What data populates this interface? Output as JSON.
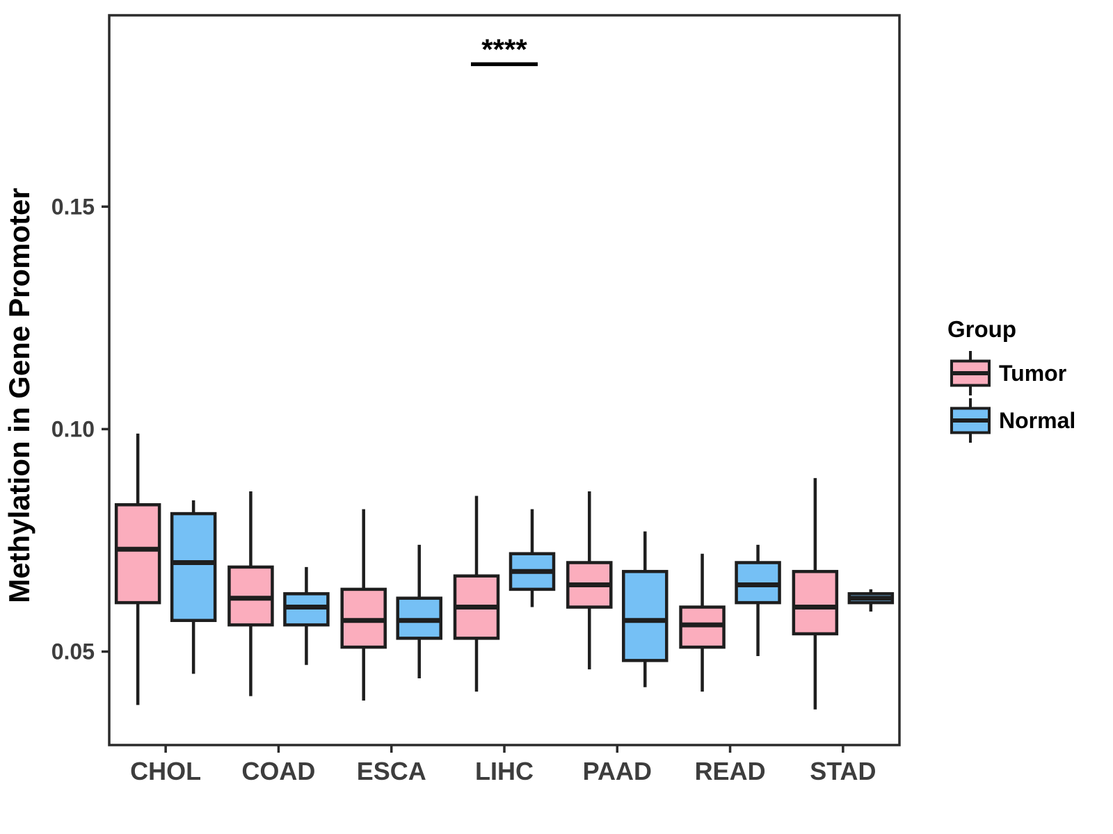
{
  "figure": {
    "y_axis_title": "Methylation in Gene Promoter",
    "significance_label": "****",
    "legend_title": "Group",
    "legend_items": [
      "Tumor",
      "Normal"
    ]
  },
  "colors": {
    "tumor_fill": "#FBADBD",
    "normal_fill": "#75C0F5",
    "box_stroke": "#1e1e1e",
    "panel_stroke": "#2b2b2b",
    "tick_text": "#3d3d3d",
    "black_text": "#000000"
  },
  "chart_data": {
    "type": "boxplot",
    "title": "",
    "xlabel": "",
    "ylabel": "Methylation in Gene Promoter",
    "grid": false,
    "legend_position": "right",
    "legend_title": "Group",
    "categories": [
      "CHOL",
      "COAD",
      "ESCA",
      "LIHC",
      "PAAD",
      "READ",
      "STAD"
    ],
    "y_ticks": [
      {
        "label": "0.05",
        "value": 0.05
      },
      {
        "label": "0.10",
        "value": 0.1
      },
      {
        "label": "0.15",
        "value": 0.15
      }
    ],
    "ylim": [
      0.029,
      0.193
    ],
    "series": [
      {
        "name": "Tumor",
        "fill": "#FBADBD",
        "boxes": [
          {
            "category": "CHOL",
            "low": 0.038,
            "q1": 0.061,
            "median": 0.073,
            "q3": 0.083,
            "high": 0.099
          },
          {
            "category": "COAD",
            "low": 0.04,
            "q1": 0.056,
            "median": 0.062,
            "q3": 0.069,
            "high": 0.086
          },
          {
            "category": "ESCA",
            "low": 0.039,
            "q1": 0.051,
            "median": 0.057,
            "q3": 0.064,
            "high": 0.082
          },
          {
            "category": "LIHC",
            "low": 0.041,
            "q1": 0.053,
            "median": 0.06,
            "q3": 0.067,
            "high": 0.085
          },
          {
            "category": "PAAD",
            "low": 0.046,
            "q1": 0.06,
            "median": 0.065,
            "q3": 0.07,
            "high": 0.086
          },
          {
            "category": "READ",
            "low": 0.041,
            "q1": 0.051,
            "median": 0.056,
            "q3": 0.06,
            "high": 0.072
          },
          {
            "category": "STAD",
            "low": 0.037,
            "q1": 0.054,
            "median": 0.06,
            "q3": 0.068,
            "high": 0.089
          }
        ]
      },
      {
        "name": "Normal",
        "fill": "#75C0F5",
        "boxes": [
          {
            "category": "CHOL",
            "low": 0.045,
            "q1": 0.057,
            "median": 0.07,
            "q3": 0.081,
            "high": 0.084
          },
          {
            "category": "COAD",
            "low": 0.047,
            "q1": 0.056,
            "median": 0.06,
            "q3": 0.063,
            "high": 0.069
          },
          {
            "category": "ESCA",
            "low": 0.044,
            "q1": 0.053,
            "median": 0.057,
            "q3": 0.062,
            "high": 0.074
          },
          {
            "category": "LIHC",
            "low": 0.06,
            "q1": 0.064,
            "median": 0.068,
            "q3": 0.072,
            "high": 0.082
          },
          {
            "category": "PAAD",
            "low": 0.042,
            "q1": 0.048,
            "median": 0.057,
            "q3": 0.068,
            "high": 0.077
          },
          {
            "category": "READ",
            "low": 0.049,
            "q1": 0.061,
            "median": 0.065,
            "q3": 0.07,
            "high": 0.074
          },
          {
            "category": "STAD",
            "low": 0.059,
            "q1": 0.061,
            "median": 0.062,
            "q3": 0.063,
            "high": 0.064
          }
        ]
      }
    ],
    "annotation": {
      "text": "****",
      "category": "LIHC",
      "line_y": 0.182,
      "spans": "tumor-to-normal"
    }
  }
}
